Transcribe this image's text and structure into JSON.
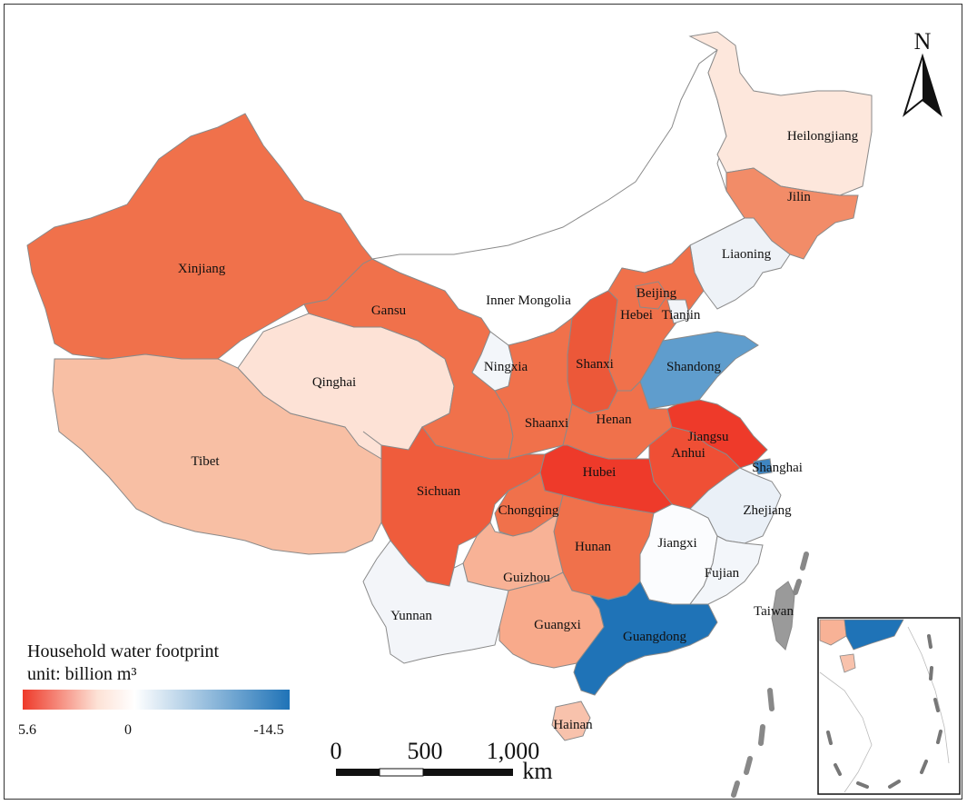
{
  "legend": {
    "title": "Household water footprint",
    "unit": "unit: billion m³",
    "min_label": "5.6",
    "mid_label": "0",
    "max_label": "-14.5",
    "color_positive": "#ee3a2a",
    "color_zero": "#ffffff",
    "color_negative": "#1f73b7"
  },
  "north_arrow": {
    "label": "N"
  },
  "scale_bar": {
    "labels": [
      "0",
      "500",
      "1,000"
    ],
    "unit": "km"
  },
  "provinces": {
    "Xinjiang": {
      "label": "Xinjiang",
      "color": "#f0714b"
    },
    "Tibet": {
      "label": "Tibet",
      "color": "#f8bfa4"
    },
    "Qinghai": {
      "label": "Qinghai",
      "color": "#fde2d6"
    },
    "Gansu": {
      "label": "Gansu",
      "color": "#f0714b"
    },
    "InnerMongolia": {
      "label": "Inner Mongolia",
      "color": "#ffffff"
    },
    "Ningxia": {
      "label": "Ningxia",
      "color": "#f3f6fa"
    },
    "Heilongjiang": {
      "label": "Heilongjiang",
      "color": "#fde7dc"
    },
    "Jilin": {
      "label": "Jilin",
      "color": "#f28c68"
    },
    "Liaoning": {
      "label": "Liaoning",
      "color": "#eef2f7"
    },
    "Beijing": {
      "label": "Beijing",
      "color": "#f0714b"
    },
    "Tianjin": {
      "label": "Tianjin",
      "color": "#f2f4f8"
    },
    "Hebei": {
      "label": "Hebei",
      "color": "#f0714b"
    },
    "Shanxi": {
      "label": "Shanxi",
      "color": "#ec5839"
    },
    "Shandong": {
      "label": "Shandong",
      "color": "#5f9dcd"
    },
    "Shaanxi": {
      "label": "Shaanxi",
      "color": "#f0714b"
    },
    "Henan": {
      "label": "Henan",
      "color": "#f0714b"
    },
    "Jiangsu": {
      "label": "Jiangsu",
      "color": "#ee3a2a"
    },
    "Shanghai": {
      "label": "Shanghai",
      "color": "#3f86c2"
    },
    "Anhui": {
      "label": "Anhui",
      "color": "#ef4f35"
    },
    "Hubei": {
      "label": "Hubei",
      "color": "#ee3a2a"
    },
    "Sichuan": {
      "label": "Sichuan",
      "color": "#ef5c3c"
    },
    "Chongqing": {
      "label": "Chongqing",
      "color": "#f0714b"
    },
    "Hunan": {
      "label": "Hunan",
      "color": "#f0714b"
    },
    "Zhejiang": {
      "label": "Zhejiang",
      "color": "#eaf0f7"
    },
    "Jiangxi": {
      "label": "Jiangxi",
      "color": "#fbfcfe"
    },
    "Fujian": {
      "label": "Fujian",
      "color": "#f3f6fa"
    },
    "Guizhou": {
      "label": "Guizhou",
      "color": "#f8b296"
    },
    "Yunnan": {
      "label": "Yunnan",
      "color": "#f3f5f9"
    },
    "Guangxi": {
      "label": "Guangxi",
      "color": "#f8aa8b"
    },
    "Guangdong": {
      "label": "Guangdong",
      "color": "#1f73b7"
    },
    "Hainan": {
      "label": "Hainan",
      "color": "#f8c2ac"
    },
    "Taiwan": {
      "label": "Taiwan",
      "color": "#9a9a9a"
    }
  }
}
